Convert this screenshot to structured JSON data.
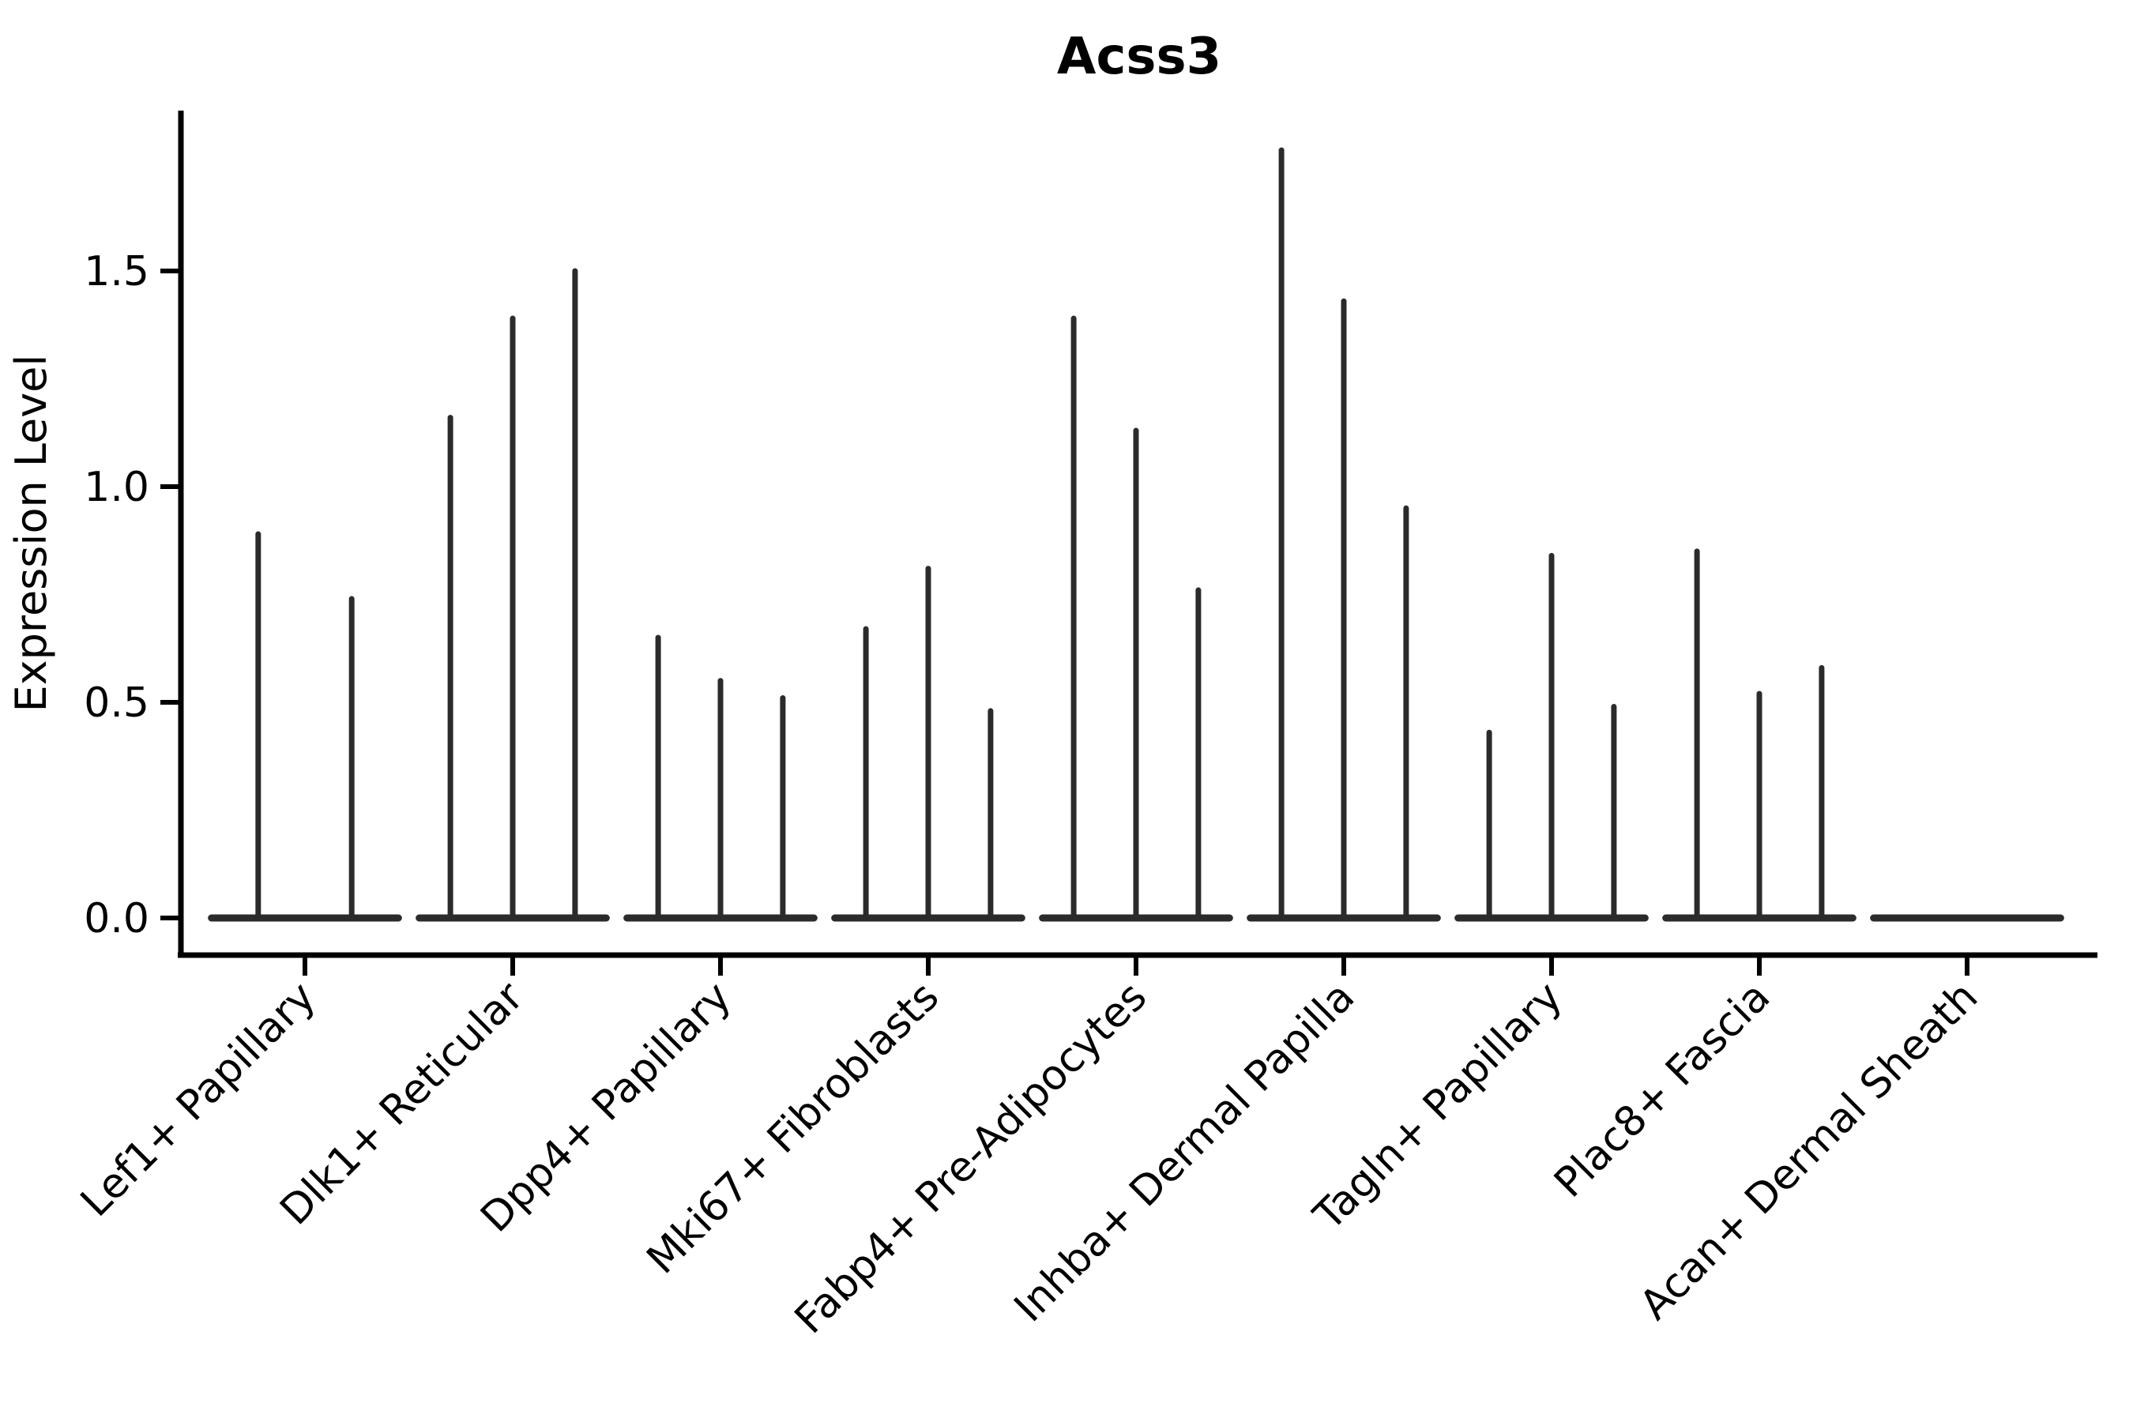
{
  "chart_data": {
    "type": "violin",
    "title": "Acss3",
    "xlabel": "",
    "ylabel": "Expression Level",
    "ytick_labels": [
      "0.0",
      "0.5",
      "1.0",
      "1.5"
    ],
    "ytick_values": [
      0.0,
      0.5,
      1.0,
      1.5
    ],
    "ylim": [
      -0.09,
      1.87
    ],
    "grid": false,
    "legend": "none",
    "baseline_value": 0.0,
    "categories": [
      "Lef1+ Papillary",
      "Dlk1+ Reticular",
      "Dpp4+ Papillary",
      "Mki67+ Fibroblasts",
      "Fabp4+ Pre-Adipocytes",
      "Inhba+ Dermal Papilla",
      "Tagln+ Papillary",
      "Plac8+ Fascia",
      "Acan+ Dermal Sheath"
    ],
    "groups": [
      {
        "category": "Lef1+ Papillary",
        "violin_peaks": [
          0.89,
          0.74
        ]
      },
      {
        "category": "Dlk1+ Reticular",
        "violin_peaks": [
          1.16,
          1.39,
          1.5
        ]
      },
      {
        "category": "Dpp4+ Papillary",
        "violin_peaks": [
          0.65,
          0.55,
          0.51
        ]
      },
      {
        "category": "Mki67+ Fibroblasts",
        "violin_peaks": [
          0.67,
          0.81,
          0.48
        ]
      },
      {
        "category": "Fabp4+ Pre-Adipocytes",
        "violin_peaks": [
          1.39,
          1.13,
          0.76
        ]
      },
      {
        "category": "Inhba+ Dermal Papilla",
        "violin_peaks": [
          1.78,
          1.43,
          0.95
        ]
      },
      {
        "category": "Tagln+ Papillary",
        "violin_peaks": [
          0.43,
          0.84,
          0.49
        ]
      },
      {
        "category": "Plac8+ Fascia",
        "violin_peaks": [
          0.85,
          0.52,
          0.58
        ]
      },
      {
        "category": "Acan+ Dermal Sheath",
        "violin_peaks": []
      }
    ],
    "colors": {
      "violin_stroke": "#2b2b2b",
      "axis": "#000000",
      "background": "#ffffff"
    }
  }
}
